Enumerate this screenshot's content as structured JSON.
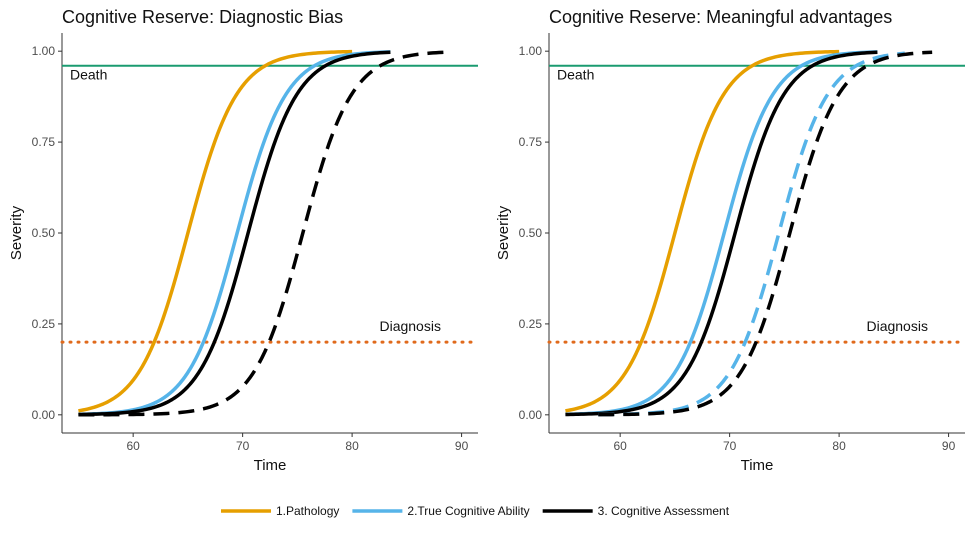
{
  "chart_data": [
    {
      "type": "line",
      "title": "Cognitive Reserve: Diagnostic Bias",
      "xlabel": "Time",
      "ylabel": "Severity",
      "xlim": [
        53.5,
        91.5
      ],
      "ylim": [
        -0.05,
        1.05
      ],
      "xticks": [
        "60",
        "70",
        "80",
        "90"
      ],
      "yticks": [
        "0.00",
        "0.25",
        "0.50",
        "0.75",
        "1.00"
      ],
      "grid": false,
      "legend": "bottom",
      "hlines": [
        {
          "label": "Death",
          "y": 0.96,
          "color": "#1a9b70",
          "style": "solid"
        },
        {
          "label": "Diagnosis",
          "y": 0.2,
          "color": "#e06a1c",
          "style": "dotted"
        }
      ],
      "series": [
        {
          "name": "1.Pathology",
          "color": "#e69f00",
          "style": "solid",
          "x_range": [
            55,
            80
          ],
          "midpoint": 65,
          "slope": 0.45
        },
        {
          "name": "2.True Cognitive Ability",
          "color": "#56b4e9",
          "style": "solid",
          "x_range": [
            55,
            83.5
          ],
          "midpoint": 69.5,
          "slope": 0.45
        },
        {
          "name": "3. Cognitive Assessment",
          "color": "#000000",
          "style": "solid",
          "x_range": [
            55,
            83.5
          ],
          "midpoint": 70.5,
          "slope": 0.45
        },
        {
          "color": "#000000",
          "style": "dashed",
          "x_range": [
            55,
            88.5
          ],
          "midpoint": 75.5,
          "slope": 0.45
        }
      ]
    },
    {
      "type": "line",
      "title": "Cognitive Reserve: Meaningful advantages",
      "xlabel": "Time",
      "ylabel": "Severity",
      "xlim": [
        53.5,
        91.5
      ],
      "ylim": [
        -0.05,
        1.05
      ],
      "xticks": [
        "60",
        "70",
        "80",
        "90"
      ],
      "yticks": [
        "0.00",
        "0.25",
        "0.50",
        "0.75",
        "1.00"
      ],
      "grid": false,
      "legend": "bottom",
      "hlines": [
        {
          "label": "Death",
          "y": 0.96,
          "color": "#1a9b70",
          "style": "solid"
        },
        {
          "label": "Diagnosis",
          "y": 0.2,
          "color": "#e06a1c",
          "style": "dotted"
        }
      ],
      "series": [
        {
          "name": "1.Pathology",
          "color": "#e69f00",
          "style": "solid",
          "x_range": [
            55,
            80
          ],
          "midpoint": 65,
          "slope": 0.45
        },
        {
          "name": "2.True Cognitive Ability",
          "color": "#56b4e9",
          "style": "solid",
          "x_range": [
            55,
            83.5
          ],
          "midpoint": 69.5,
          "slope": 0.45
        },
        {
          "name": "3. Cognitive Assessment",
          "color": "#000000",
          "style": "solid",
          "x_range": [
            55,
            83.5
          ],
          "midpoint": 70.5,
          "slope": 0.45
        },
        {
          "color": "#56b4e9",
          "style": "dashed",
          "x_range": [
            58,
            86
          ],
          "midpoint": 74.5,
          "slope": 0.45
        },
        {
          "color": "#000000",
          "style": "dashed",
          "x_range": [
            58,
            88.5
          ],
          "midpoint": 75.5,
          "slope": 0.45
        }
      ]
    }
  ],
  "legend": {
    "items": [
      {
        "label": "1.Pathology",
        "color": "#e69f00"
      },
      {
        "label": "2.True Cognitive Ability",
        "color": "#56b4e9"
      },
      {
        "label": "3. Cognitive Assessment",
        "color": "#000000"
      }
    ]
  }
}
